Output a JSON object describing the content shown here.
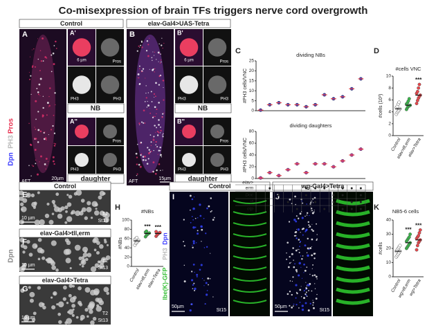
{
  "title": "Co-misexpression of brain TFs triggers nerve cord overgrowth",
  "panel_a": {
    "header": "Control",
    "label": "A",
    "stain": [
      "Dpn",
      "PH3",
      "Pros"
    ],
    "inset_top": "A'",
    "inset_bottom": "A''",
    "scale": "20µm",
    "inset_scale": "6 µm",
    "stage": "AFT",
    "channels": [
      "PH3",
      "Pros",
      "Dpn"
    ],
    "nb": "NB",
    "daughter": "daughter"
  },
  "panel_b": {
    "header": "elav-Gal4>UAS-Tetra",
    "label": "B",
    "inset_top": "B'",
    "inset_bottom": "B''",
    "scale": "15µm",
    "inset_scale": "6 µm",
    "stage": "AFT",
    "channels": [
      "PH3",
      "Pros",
      "Dpn"
    ],
    "nb": "NB",
    "daughter": "daughter"
  },
  "panel_e": {
    "labels": [
      "E",
      "F",
      "G"
    ],
    "headers": [
      "Control",
      "elav-Gal4>tll,erm",
      "elav-Gal4>Tetra"
    ],
    "stain": "Dpn",
    "scale": "10 µm",
    "segment": "T2",
    "stage": "St13"
  },
  "panel_i": {
    "labels": [
      "I",
      "J"
    ],
    "headers": [
      "Control",
      "wg-Gal4>Tetra"
    ],
    "stain": [
      "lbe(K)-GFP",
      "PH3",
      "Dpn"
    ],
    "scale": "50µm",
    "stage": "St15"
  },
  "genotype_matrix": {
    "header": "elav>",
    "rows": [
      {
        "name": "erm",
        "cells": [
          null,
          "●",
          null,
          null,
          null,
          "●",
          "●",
          "●",
          null,
          "●",
          "●",
          "●"
        ]
      },
      {
        "name": "Doc",
        "cells": [
          null,
          null,
          "●",
          null,
          null,
          "●",
          null,
          null,
          "●",
          "●",
          null,
          "●"
        ]
      },
      {
        "name": "tll",
        "cells": [
          null,
          null,
          null,
          "●",
          null,
          null,
          "●",
          null,
          "●",
          null,
          "●",
          "●"
        ]
      },
      {
        "name": "otp",
        "cells": [
          null,
          null,
          null,
          null,
          "●",
          null,
          null,
          "●",
          null,
          "●",
          "●",
          "●"
        ]
      }
    ]
  },
  "chart_data": [
    {
      "type": "strip",
      "panel": "C",
      "title": "dividing NBs",
      "ylabel": "#PH3 cells/VNC",
      "color": "#3d3dbd",
      "mean_color": "#e8464b",
      "ylim": [
        0,
        25
      ],
      "yticks": [
        0,
        5,
        10,
        15,
        20,
        25
      ],
      "values": [
        0.3,
        3,
        4,
        3,
        3,
        2,
        3,
        8,
        6,
        7,
        11,
        16
      ]
    },
    {
      "type": "strip",
      "panel": null,
      "title": "dividing daughters",
      "ylabel": "#PH3 cells/VNC",
      "color": "#b23aa0",
      "mean_color": "#e8464b",
      "ylim": [
        0,
        80
      ],
      "yticks": [
        0,
        20,
        40,
        60,
        80
      ],
      "values": [
        1,
        10,
        5,
        15,
        25,
        10,
        25,
        25,
        20,
        30,
        40,
        50
      ]
    },
    {
      "type": "strip",
      "panel": "D",
      "title": "#cells VNC",
      "ylabel": "#cells (10³)",
      "categories": [
        "Control",
        "elav>tll,erm",
        "elav>Tetra"
      ],
      "colors": [
        "#ffffff",
        "#39b54a",
        "#e8464b"
      ],
      "ylim": [
        0,
        10
      ],
      "yticks": [
        0,
        2,
        4,
        6,
        8,
        10
      ],
      "values": [
        4.5,
        5.1,
        6.8
      ],
      "points": [
        [
          3.6,
          3.9,
          4.1,
          4.3,
          4.5,
          4.7,
          4.9,
          5.3,
          5.6
        ],
        [
          4.4,
          4.7,
          4.9,
          5.0,
          5.1,
          5.3,
          5.5,
          5.8,
          6.2
        ],
        [
          5.4,
          5.9,
          6.3,
          6.6,
          6.8,
          7.1,
          7.4,
          8.0,
          8.6
        ]
      ],
      "annotations": [
        null,
        null,
        "***"
      ]
    },
    {
      "type": "strip",
      "panel": "H",
      "title": "#NBs",
      "ylabel": "#NBs",
      "categories": [
        "Control",
        "elav>tll,erm",
        "elav>Tetra"
      ],
      "colors": [
        "#ffffff",
        "#39b54a",
        "#e8464b"
      ],
      "ylim": [
        0,
        100
      ],
      "yticks": [
        0,
        20,
        40,
        60,
        80,
        100
      ],
      "values": [
        55,
        71,
        71
      ],
      "points": [
        [
          46,
          50,
          52,
          54,
          56,
          58,
          60,
          62
        ],
        [
          64,
          67,
          69,
          71,
          72,
          74,
          76
        ],
        [
          65,
          68,
          70,
          72,
          73,
          75
        ]
      ],
      "annotations": [
        null,
        "***",
        "***"
      ]
    },
    {
      "type": "strip",
      "panel": "K",
      "title": "NB5-6 cells",
      "ylabel": "#cells",
      "categories": [
        "Control",
        "wg>tll,erm",
        "wg>Tetra"
      ],
      "colors": [
        "#ffffff",
        "#39b54a",
        "#e8464b"
      ],
      "ylim": [
        0,
        40
      ],
      "yticks": [
        0,
        10,
        20,
        30,
        40
      ],
      "values": [
        18,
        24,
        26
      ],
      "points": [
        [
          14,
          15,
          16,
          17,
          18,
          18,
          19,
          20,
          21,
          22
        ],
        [
          20,
          21,
          22,
          23,
          24,
          25,
          26,
          27,
          28,
          30
        ],
        [
          19,
          22,
          24,
          25,
          26,
          27,
          28,
          29,
          31,
          33
        ]
      ],
      "annotations": [
        null,
        "***",
        "***"
      ]
    }
  ]
}
